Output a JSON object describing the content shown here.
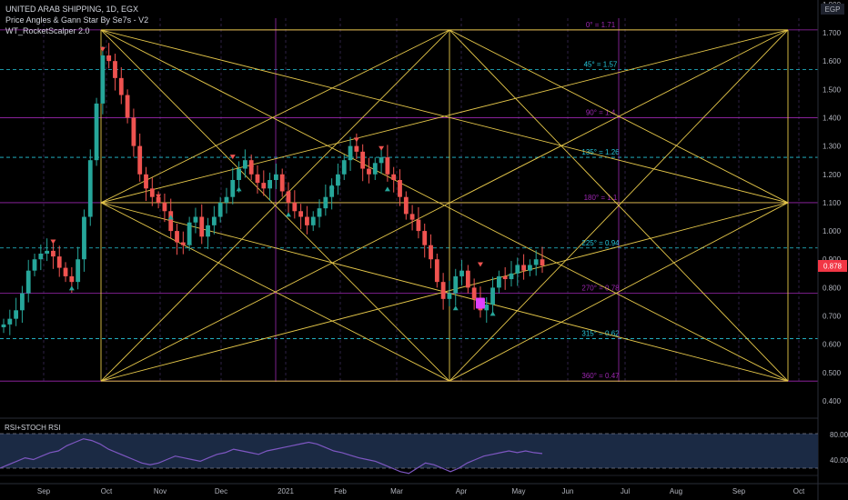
{
  "legend": {
    "symbol": "UNITED ARAB SHIPPING, 1D, EGX",
    "indicator1": "Price Angles & Gann Star By Se7s - V2",
    "indicator2": "WT_RocketScalper 2.0"
  },
  "currency": "EGP",
  "last_price": "0.878",
  "rsi_label": "RSI+STOCH RSI",
  "price_axis": {
    "ticks": [
      "1.800",
      "1.700",
      "1.600",
      "1.500",
      "1.400",
      "1.300",
      "1.200",
      "1.100",
      "1.000",
      "0.900",
      "0.800",
      "0.700",
      "0.600",
      "0.500",
      "0.400"
    ],
    "min": 0.4,
    "max": 1.8
  },
  "rsi_axis": {
    "ticks": [
      "80.000",
      "40.000"
    ]
  },
  "time_axis": {
    "ticks": [
      "Sep",
      "Oct",
      "Nov",
      "Dec",
      "2021",
      "Feb",
      "Mar",
      "Apr",
      "May",
      "Jun",
      "Jul",
      "Aug",
      "Sep",
      "Oct"
    ]
  },
  "gann_levels": [
    {
      "label": "0° = 1.71",
      "value": 1.71,
      "color": "#9c27b0"
    },
    {
      "label": "45° = 1.57",
      "value": 1.57,
      "color": "#26c6da"
    },
    {
      "label": "90° = 1.4",
      "value": 1.4,
      "color": "#9c27b0"
    },
    {
      "label": "135° = 1.26",
      "value": 1.26,
      "color": "#26c6da"
    },
    {
      "label": "180° = 1.1",
      "value": 1.1,
      "color": "#9c27b0"
    },
    {
      "label": "225° = 0.94",
      "value": 0.94,
      "color": "#26c6da"
    },
    {
      "label": "270° = 0.78",
      "value": 0.78,
      "color": "#9c27b0"
    },
    {
      "label": "315° = 0.62",
      "value": 0.62,
      "color": "#26c6da"
    },
    {
      "label": "360° = 0.47",
      "value": 0.47,
      "color": "#9c27b0"
    }
  ],
  "colors": {
    "up": "#26a69a",
    "down": "#ef5350",
    "gann_lines": "#e6c84a",
    "rsi_line": "#7e57c2",
    "price_tag": "#f23645",
    "bg": "#000000"
  },
  "price_series": [
    0.67,
    0.69,
    0.72,
    0.78,
    0.86,
    0.9,
    0.92,
    0.93,
    0.91,
    0.87,
    0.84,
    0.82,
    0.9,
    1.05,
    1.25,
    1.45,
    1.62,
    1.6,
    1.54,
    1.48,
    1.4,
    1.3,
    1.2,
    1.15,
    1.12,
    1.1,
    1.07,
    1.0,
    0.96,
    0.95,
    1.03,
    1.05,
    0.98,
    1.02,
    1.05,
    1.1,
    1.12,
    1.18,
    1.22,
    1.25,
    1.2,
    1.17,
    1.15,
    1.18,
    1.2,
    1.14,
    1.1,
    1.07,
    1.05,
    1.02,
    1.05,
    1.08,
    1.12,
    1.16,
    1.2,
    1.25,
    1.3,
    1.28,
    1.22,
    1.2,
    1.24,
    1.26,
    1.2,
    1.18,
    1.12,
    1.06,
    1.04,
    1.0,
    0.95,
    0.9,
    0.82,
    0.76,
    0.78,
    0.84,
    0.86,
    0.8,
    0.76,
    0.72,
    0.74,
    0.8,
    0.84,
    0.83,
    0.85,
    0.88,
    0.86,
    0.88,
    0.9,
    0.878
  ],
  "rsi_series": [
    40,
    44,
    48,
    52,
    50,
    54,
    58,
    60,
    66,
    70,
    74,
    72,
    68,
    62,
    58,
    54,
    50,
    46,
    44,
    46,
    50,
    54,
    52,
    50,
    48,
    52,
    56,
    58,
    62,
    60,
    58,
    56,
    60,
    62,
    64,
    66,
    68,
    70,
    68,
    64,
    60,
    58,
    55,
    52,
    50,
    48,
    44,
    40,
    36,
    34,
    40,
    46,
    44,
    40,
    36,
    40,
    46,
    50,
    54,
    56,
    58,
    60,
    58,
    60,
    58,
    57
  ]
}
